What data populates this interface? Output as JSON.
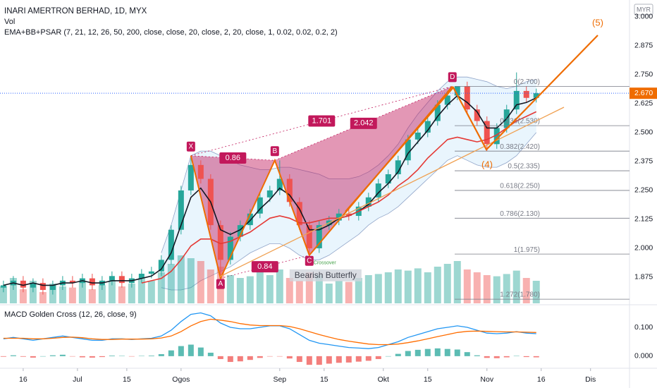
{
  "chart_data": [
    {
      "type": "candlestick",
      "title": "INARI AMERTRON BERHAD, 1D, MYX",
      "subtitle": "EMA+BB+PSAR (7, 21, 12, 26, 50, 200, close, close, 20, close, 2, 20, close, 1, 0.02, 0.02, 0.2, 2)",
      "currency": "MYR",
      "x": [
        0,
        2,
        4,
        6,
        8,
        10,
        12,
        14,
        16,
        18,
        20,
        22,
        24,
        26,
        28,
        30,
        32,
        34,
        36,
        38,
        40,
        42,
        44,
        46,
        48,
        50,
        52,
        54,
        56,
        58,
        60,
        62,
        64,
        66,
        68,
        70,
        72,
        74,
        76,
        78,
        80,
        82,
        84,
        86,
        88,
        90,
        92,
        94,
        96,
        98,
        100,
        102,
        104,
        106,
        108
      ],
      "open": [
        1.83,
        1.84,
        1.86,
        1.83,
        1.85,
        1.82,
        1.84,
        1.86,
        1.85,
        1.87,
        1.84,
        1.86,
        1.88,
        1.85,
        1.87,
        1.89,
        1.9,
        1.95,
        2.08,
        2.25,
        2.36,
        2.3,
        2.1,
        1.95,
        2.05,
        2.1,
        2.15,
        2.22,
        2.25,
        2.3,
        2.2,
        2.1,
        2.0,
        2.1,
        2.12,
        2.15,
        2.14,
        2.18,
        2.22,
        2.28,
        2.32,
        2.38,
        2.47,
        2.5,
        2.55,
        2.62,
        2.66,
        2.7,
        2.6,
        2.55,
        2.45,
        2.52,
        2.6,
        2.68,
        2.65
      ],
      "high": [
        1.86,
        1.88,
        1.88,
        1.87,
        1.87,
        1.86,
        1.88,
        1.88,
        1.89,
        1.89,
        1.88,
        1.9,
        1.9,
        1.89,
        1.91,
        1.92,
        1.97,
        2.1,
        2.27,
        2.4,
        2.38,
        2.32,
        2.12,
        2.07,
        2.12,
        2.17,
        2.24,
        2.27,
        2.38,
        2.32,
        2.22,
        2.12,
        2.12,
        2.14,
        2.17,
        2.17,
        2.2,
        2.24,
        2.3,
        2.34,
        2.4,
        2.49,
        2.52,
        2.57,
        2.64,
        2.68,
        2.7,
        2.72,
        2.62,
        2.57,
        2.54,
        2.62,
        2.76,
        2.7,
        2.69
      ],
      "low": [
        1.81,
        1.82,
        1.81,
        1.81,
        1.8,
        1.8,
        1.82,
        1.83,
        1.83,
        1.82,
        1.82,
        1.84,
        1.83,
        1.83,
        1.85,
        1.87,
        1.88,
        1.93,
        2.06,
        2.23,
        2.28,
        2.08,
        1.87,
        1.93,
        2.03,
        2.08,
        2.13,
        2.2,
        2.23,
        2.18,
        2.08,
        1.97,
        1.98,
        2.08,
        2.1,
        2.12,
        2.12,
        2.16,
        2.2,
        2.26,
        2.3,
        2.36,
        2.45,
        2.48,
        2.53,
        2.6,
        2.64,
        2.58,
        2.53,
        2.42,
        2.43,
        2.5,
        2.58,
        2.63,
        2.63
      ],
      "close": [
        1.84,
        1.86,
        1.83,
        1.85,
        1.82,
        1.84,
        1.86,
        1.85,
        1.87,
        1.84,
        1.86,
        1.88,
        1.85,
        1.87,
        1.89,
        1.9,
        1.95,
        2.08,
        2.25,
        2.36,
        2.3,
        2.1,
        1.95,
        2.05,
        2.1,
        2.15,
        2.22,
        2.25,
        2.3,
        2.2,
        2.1,
        2.0,
        2.1,
        2.12,
        2.15,
        2.14,
        2.18,
        2.22,
        2.28,
        2.32,
        2.38,
        2.47,
        2.5,
        2.55,
        2.62,
        2.66,
        2.7,
        2.6,
        2.55,
        2.45,
        2.52,
        2.6,
        2.68,
        2.65,
        2.67
      ],
      "up_color": "#26a69a",
      "down_color": "#ef5350",
      "series": [
        {
          "color": "#131722",
          "values": [
            1.84,
            1.85,
            1.84,
            1.85,
            1.84,
            1.84,
            1.85,
            1.85,
            1.86,
            1.85,
            1.85,
            1.86,
            1.86,
            1.86,
            1.87,
            1.88,
            1.91,
            1.98,
            2.1,
            2.22,
            2.26,
            2.2,
            2.08,
            2.06,
            2.08,
            2.12,
            2.17,
            2.21,
            2.26,
            2.23,
            2.17,
            2.08,
            2.08,
            2.1,
            2.13,
            2.14,
            2.16,
            2.19,
            2.24,
            2.28,
            2.33,
            2.41,
            2.46,
            2.51,
            2.57,
            2.62,
            2.66,
            2.63,
            2.59,
            2.52,
            2.52,
            2.56,
            2.62,
            2.63,
            2.65
          ]
        },
        {
          "color": "#e53935",
          "values": [
            null,
            null,
            null,
            null,
            null,
            null,
            null,
            null,
            null,
            null,
            null,
            null,
            null,
            null,
            1.85,
            1.86,
            1.87,
            1.9,
            1.95,
            2.01,
            2.04,
            2.04,
            2.02,
            2.03,
            2.05,
            2.07,
            2.1,
            2.13,
            2.14,
            2.13,
            2.11,
            2.11,
            2.12,
            2.13,
            2.13,
            2.14,
            2.16,
            2.18,
            2.2,
            2.23,
            2.27,
            2.3,
            2.34,
            2.39,
            2.43,
            2.47,
            2.48,
            2.47,
            2.46,
            2.47,
            2.49,
            2.52,
            2.55,
            2.57,
            2.59
          ]
        }
      ],
      "band": {
        "color": "#90a4c8",
        "fill": "#e3f2fd",
        "upper": [
          null,
          null,
          null,
          null,
          null,
          null,
          null,
          null,
          null,
          null,
          null,
          null,
          null,
          null,
          null,
          null,
          1.98,
          2.1,
          2.25,
          2.4,
          2.42,
          2.42,
          2.4,
          2.38,
          2.36,
          2.35,
          2.34,
          2.34,
          2.35,
          2.35,
          2.34,
          2.33,
          2.32,
          2.3,
          2.3,
          2.3,
          2.31,
          2.33,
          2.36,
          2.4,
          2.45,
          2.52,
          2.58,
          2.63,
          2.68,
          2.72,
          2.74,
          2.74,
          2.73,
          2.72,
          2.7,
          2.69,
          2.7,
          2.72,
          2.73
        ],
        "lower": [
          null,
          null,
          null,
          null,
          null,
          null,
          null,
          null,
          null,
          null,
          null,
          null,
          null,
          null,
          null,
          null,
          1.83,
          1.82,
          1.82,
          1.83,
          1.86,
          1.88,
          1.9,
          1.92,
          1.95,
          1.98,
          2.0,
          2.02,
          2.02,
          2.0,
          1.97,
          1.95,
          1.95,
          1.97,
          2.0,
          2.03,
          2.06,
          2.1,
          2.13,
          2.15,
          2.18,
          2.22,
          2.26,
          2.3,
          2.34,
          2.38,
          2.4,
          2.38,
          2.36,
          2.35,
          2.35,
          2.37,
          2.4,
          2.45,
          2.5
        ]
      },
      "pattern": {
        "name": "Bearish Butterfly",
        "color": "#c2185b",
        "points": [
          {
            "label": "X",
            "x": 38,
            "y": 2.4
          },
          {
            "label": "A",
            "x": 44,
            "y": 1.87
          },
          {
            "label": "B",
            "x": 55,
            "y": 2.38
          },
          {
            "label": "C",
            "x": 62,
            "y": 1.97
          },
          {
            "label": "D",
            "x": 91,
            "y": 2.7
          }
        ],
        "ratios": [
          0.86,
          1.701,
          2.042,
          0.84
        ]
      },
      "annotation": "Crossover",
      "fib_levels": [
        {
          "label": "0(2.700)",
          "value": 2.7
        },
        {
          "label": "0.236(2.530)",
          "value": 2.53
        },
        {
          "label": "0.382(2.420)",
          "value": 2.42
        },
        {
          "label": "0.5(2.335)",
          "value": 2.335
        },
        {
          "label": "0.618(2.250)",
          "value": 2.25
        },
        {
          "label": "0.786(2.130)",
          "value": 2.13
        },
        {
          "label": "1(1.975)",
          "value": 1.975
        },
        {
          "label": "1.272(1.780)",
          "value": 1.78
        }
      ],
      "waves": [
        "(4)",
        "(5)"
      ],
      "last_price": {
        "value": 2.67,
        "label": "2.670"
      },
      "xlim": [
        -0.7,
        126.9
      ],
      "xticks": [
        {
          "value": 4,
          "label": "16"
        },
        {
          "value": 15,
          "label": "Jul"
        },
        {
          "value": 25,
          "label": "15"
        },
        {
          "value": 36,
          "label": "Ogos"
        },
        {
          "value": 56,
          "label": "Sep"
        },
        {
          "value": 65,
          "label": "15"
        },
        {
          "value": 77,
          "label": "Okt"
        },
        {
          "value": 86,
          "label": "15"
        },
        {
          "value": 98,
          "label": "Nov"
        },
        {
          "value": 109,
          "label": "16"
        },
        {
          "value": 119,
          "label": "Dis"
        }
      ],
      "ylim": [
        1.762,
        3.073
      ],
      "yticks": [
        {
          "value": 3,
          "label": "3.000"
        },
        {
          "value": 2.875,
          "label": "2.875"
        },
        {
          "value": 2.75,
          "label": "2.750"
        },
        {
          "value": 2.625,
          "label": "2.625"
        },
        {
          "value": 2.5,
          "label": "2.500"
        },
        {
          "value": 2.375,
          "label": "2.375"
        },
        {
          "value": 2.25,
          "label": "2.250"
        },
        {
          "value": 2.125,
          "label": "2.125"
        },
        {
          "value": 2,
          "label": "2.000"
        },
        {
          "value": 1.875,
          "label": "1.875"
        }
      ]
    },
    {
      "type": "bar",
      "title": "Vol",
      "values": [
        30,
        45,
        25,
        40,
        20,
        35,
        30,
        28,
        38,
        25,
        32,
        40,
        30,
        35,
        45,
        40,
        55,
        70,
        85,
        80,
        75,
        60,
        65,
        50,
        45,
        48,
        55,
        50,
        60,
        45,
        40,
        55,
        50,
        35,
        40,
        38,
        45,
        50,
        52,
        55,
        60,
        58,
        62,
        55,
        65,
        70,
        75,
        60,
        55,
        50,
        48,
        52,
        58,
        45,
        40
      ],
      "ylim": [
        0,
        100
      ]
    },
    {
      "type": "macd",
      "title": "MACD Golden Cross (12, 26, close, 9)",
      "series": [
        {
          "color": "#2196f3",
          "values": [
            0.06,
            0.065,
            0.06,
            0.055,
            0.06,
            0.065,
            0.07,
            0.065,
            0.06,
            0.055,
            0.055,
            0.06,
            0.06,
            0.058,
            0.06,
            0.062,
            0.07,
            0.09,
            0.12,
            0.145,
            0.15,
            0.14,
            0.115,
            0.1,
            0.095,
            0.095,
            0.1,
            0.105,
            0.105,
            0.095,
            0.075,
            0.055,
            0.045,
            0.04,
            0.035,
            0.03,
            0.028,
            0.026,
            0.03,
            0.04,
            0.05,
            0.065,
            0.075,
            0.085,
            0.095,
            0.1,
            0.105,
            0.1,
            0.09,
            0.08,
            0.078,
            0.08,
            0.085,
            0.08,
            0.078
          ]
        },
        {
          "color": "#ff6d00",
          "values": [
            0.062,
            0.062,
            0.062,
            0.06,
            0.06,
            0.062,
            0.065,
            0.066,
            0.064,
            0.06,
            0.058,
            0.058,
            0.059,
            0.059,
            0.059,
            0.06,
            0.063,
            0.07,
            0.085,
            0.105,
            0.12,
            0.128,
            0.125,
            0.12,
            0.113,
            0.108,
            0.106,
            0.106,
            0.106,
            0.103,
            0.095,
            0.085,
            0.075,
            0.066,
            0.058,
            0.052,
            0.047,
            0.042,
            0.04,
            0.04,
            0.042,
            0.047,
            0.053,
            0.06,
            0.068,
            0.075,
            0.082,
            0.086,
            0.087,
            0.086,
            0.085,
            0.084,
            0.084,
            0.083,
            0.082
          ]
        }
      ],
      "histogram": [
        -0.002,
        0.003,
        -0.002,
        -0.005,
        0,
        0.003,
        0.005,
        -0.001,
        -0.004,
        -0.005,
        -0.003,
        0.002,
        0.001,
        -0.001,
        0.001,
        0.002,
        0.007,
        0.02,
        0.035,
        0.04,
        0.03,
        0.012,
        -0.01,
        -0.02,
        -0.018,
        -0.013,
        -0.006,
        -0.001,
        -0.001,
        -0.008,
        -0.02,
        -0.03,
        -0.03,
        -0.026,
        -0.023,
        -0.022,
        -0.019,
        -0.016,
        -0.01,
        0,
        0.008,
        0.018,
        0.022,
        0.025,
        0.027,
        0.025,
        0.023,
        0.014,
        0.003,
        -0.006,
        -0.007,
        -0.004,
        0.001,
        -0.003,
        -0.004
      ],
      "ylim": [
        -0.037,
        0.166
      ],
      "yticks": [
        {
          "value": 0.1,
          "label": "0.100"
        },
        {
          "value": 0,
          "label": "0.000"
        }
      ]
    }
  ]
}
